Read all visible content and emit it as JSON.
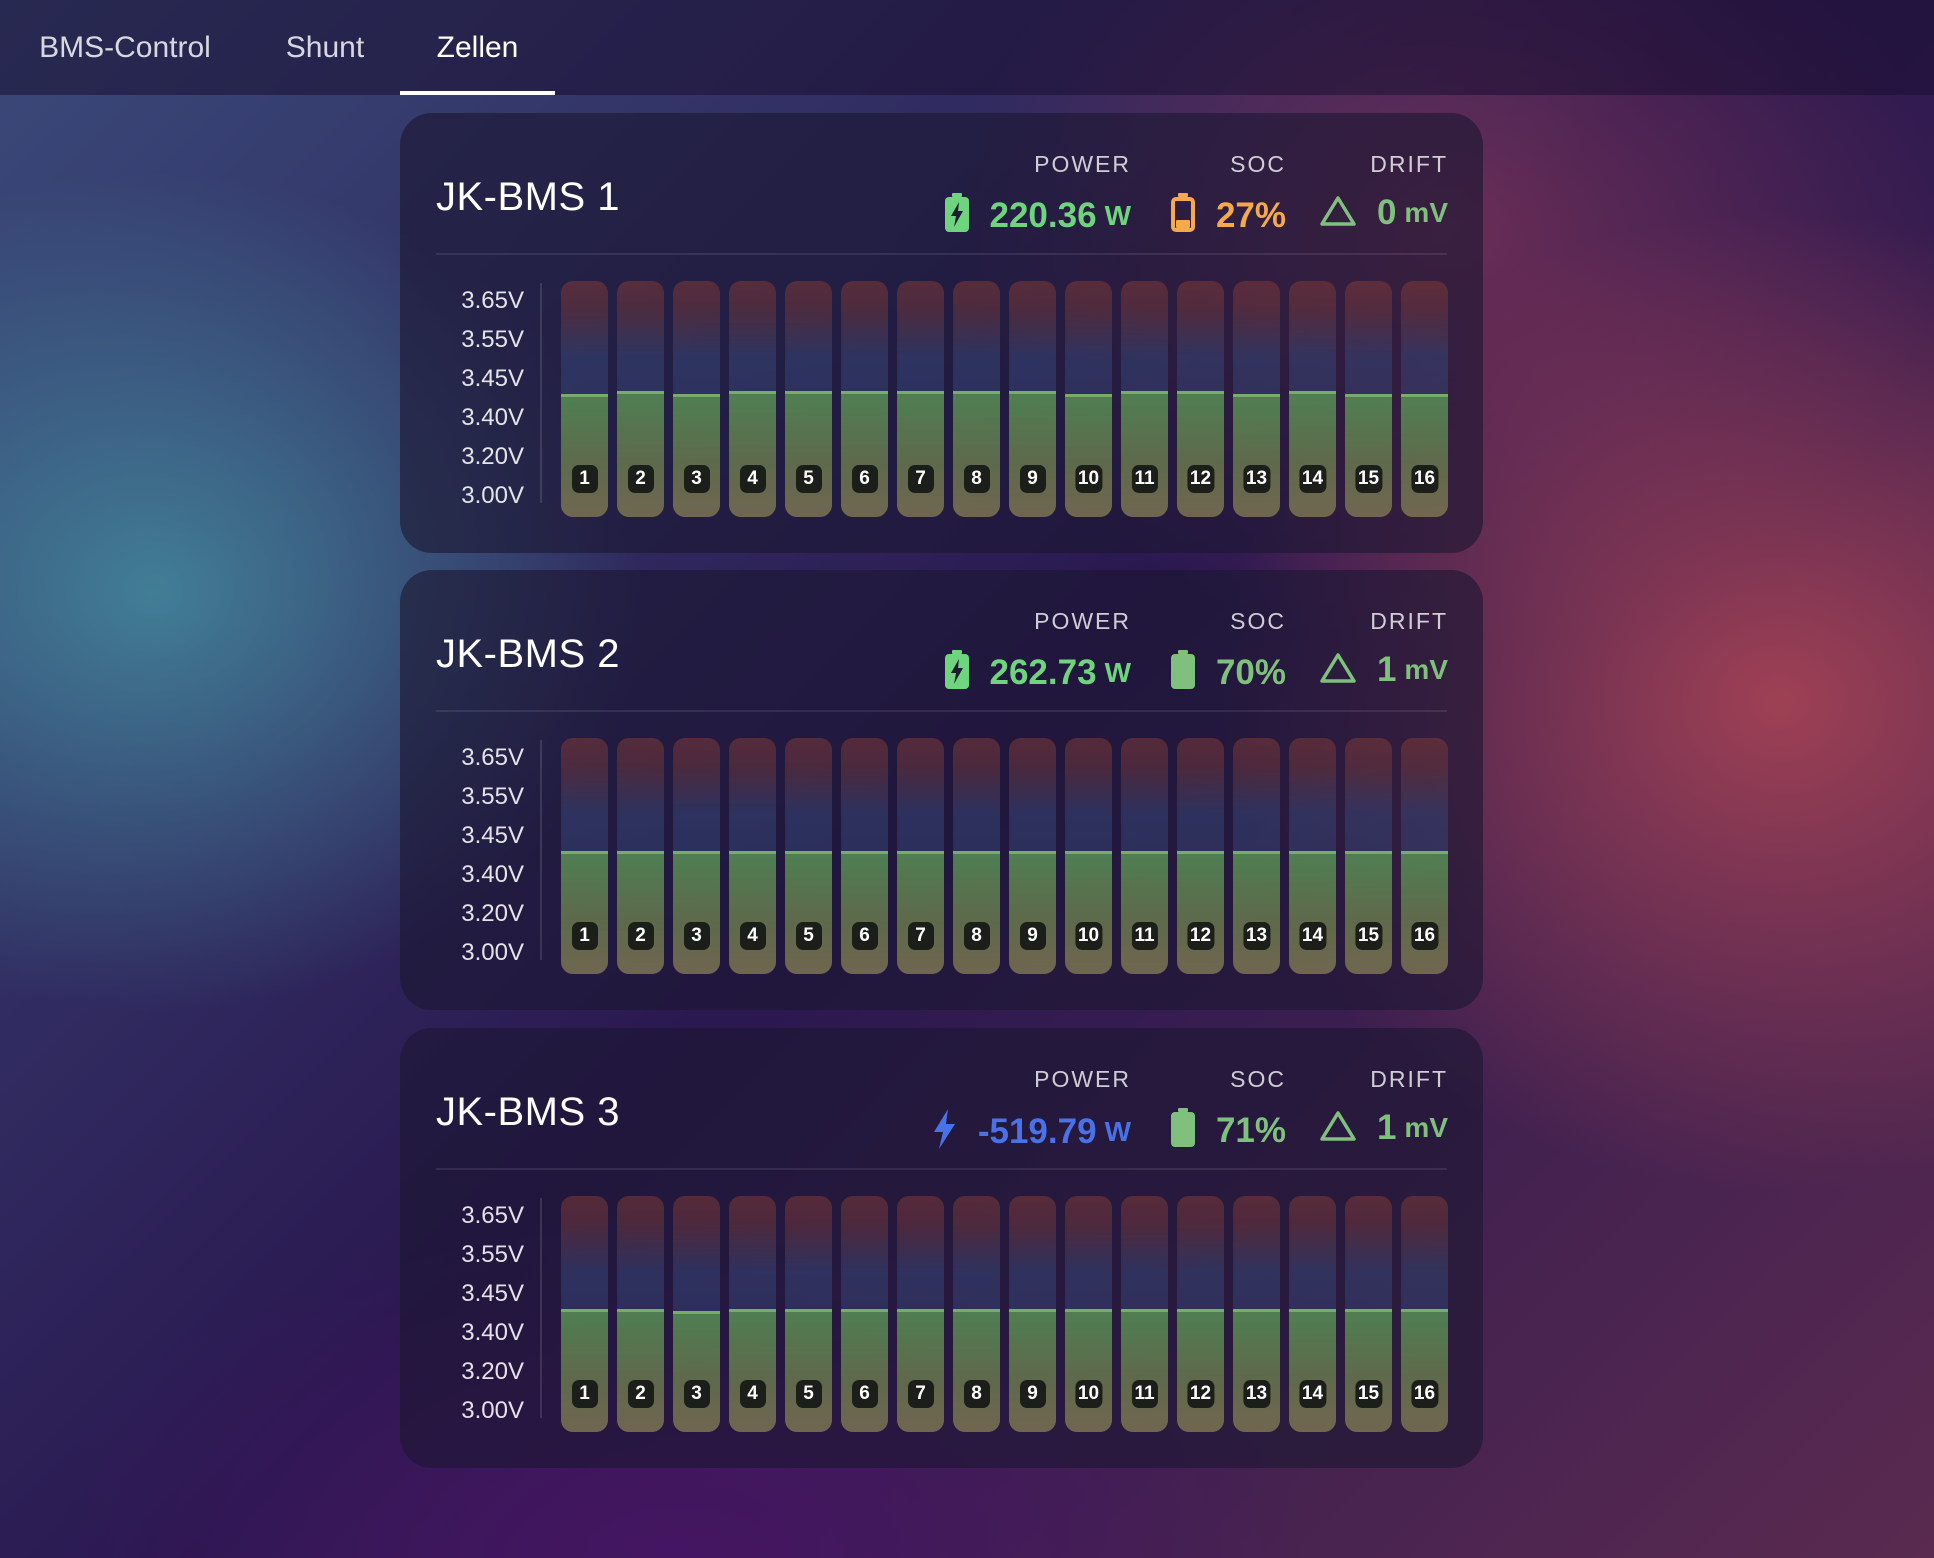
{
  "tabs": [
    {
      "label": "BMS-Control",
      "active": false
    },
    {
      "label": "Shunt",
      "active": false
    },
    {
      "label": "Zellen",
      "active": true
    }
  ],
  "y_axis_labels": [
    "3.65V",
    "3.55V",
    "3.45V",
    "3.40V",
    "3.20V",
    "3.00V"
  ],
  "metric_labels": {
    "power": "POWER",
    "soc": "SOC",
    "drift": "DRIFT"
  },
  "colors": {
    "green": "#6fd47e",
    "orange": "#f4a94a",
    "blue": "#4a72e8",
    "soc_green": "#7fc07c",
    "drift": "#7fc07c"
  },
  "cards": [
    {
      "title": "JK-BMS 1",
      "power": {
        "value": "220.36",
        "unit": "W",
        "icon": "battery-charging-icon"
      },
      "soc": {
        "value": "27%",
        "icon": "battery-low-icon"
      },
      "drift": {
        "value": "0",
        "unit": "mV",
        "icon": "delta-icon"
      },
      "cells": [
        {
          "label": "1",
          "level": 0.51
        },
        {
          "label": "2",
          "level": 0.52
        },
        {
          "label": "3",
          "level": 0.51
        },
        {
          "label": "4",
          "level": 0.52
        },
        {
          "label": "5",
          "level": 0.52
        },
        {
          "label": "6",
          "level": 0.52
        },
        {
          "label": "7",
          "level": 0.52
        },
        {
          "label": "8",
          "level": 0.52
        },
        {
          "label": "9",
          "level": 0.52
        },
        {
          "label": "10",
          "level": 0.51
        },
        {
          "label": "11",
          "level": 0.52
        },
        {
          "label": "12",
          "level": 0.52
        },
        {
          "label": "13",
          "level": 0.51
        },
        {
          "label": "14",
          "level": 0.52
        },
        {
          "label": "15",
          "level": 0.51
        },
        {
          "label": "16",
          "level": 0.51
        }
      ]
    },
    {
      "title": "JK-BMS 2",
      "power": {
        "value": "262.73",
        "unit": "W",
        "icon": "battery-charging-icon"
      },
      "soc": {
        "value": "70%",
        "icon": "battery-icon"
      },
      "drift": {
        "value": "1",
        "unit": "mV",
        "icon": "delta-icon"
      },
      "cells": [
        {
          "label": "1",
          "level": 0.51
        },
        {
          "label": "2",
          "level": 0.51
        },
        {
          "label": "3",
          "level": 0.51
        },
        {
          "label": "4",
          "level": 0.51
        },
        {
          "label": "5",
          "level": 0.51
        },
        {
          "label": "6",
          "level": 0.51
        },
        {
          "label": "7",
          "level": 0.51
        },
        {
          "label": "8",
          "level": 0.51
        },
        {
          "label": "9",
          "level": 0.51
        },
        {
          "label": "10",
          "level": 0.51
        },
        {
          "label": "11",
          "level": 0.51
        },
        {
          "label": "12",
          "level": 0.51
        },
        {
          "label": "13",
          "level": 0.51
        },
        {
          "label": "14",
          "level": 0.51
        },
        {
          "label": "15",
          "level": 0.51
        },
        {
          "label": "16",
          "level": 0.51
        }
      ]
    },
    {
      "title": "JK-BMS 3",
      "power": {
        "value": "-519.79",
        "unit": "W",
        "icon": "lightning-icon"
      },
      "soc": {
        "value": "71%",
        "icon": "battery-icon"
      },
      "drift": {
        "value": "1",
        "unit": "mV",
        "icon": "delta-icon"
      },
      "cells": [
        {
          "label": "1",
          "level": 0.51
        },
        {
          "label": "2",
          "level": 0.51
        },
        {
          "label": "3",
          "level": 0.5
        },
        {
          "label": "4",
          "level": 0.51
        },
        {
          "label": "5",
          "level": 0.51
        },
        {
          "label": "6",
          "level": 0.51
        },
        {
          "label": "7",
          "level": 0.51
        },
        {
          "label": "8",
          "level": 0.51
        },
        {
          "label": "9",
          "level": 0.51
        },
        {
          "label": "10",
          "level": 0.51
        },
        {
          "label": "11",
          "level": 0.51
        },
        {
          "label": "12",
          "level": 0.51
        },
        {
          "label": "13",
          "level": 0.51
        },
        {
          "label": "14",
          "level": 0.51
        },
        {
          "label": "15",
          "level": 0.51
        },
        {
          "label": "16",
          "level": 0.51
        }
      ]
    }
  ]
}
